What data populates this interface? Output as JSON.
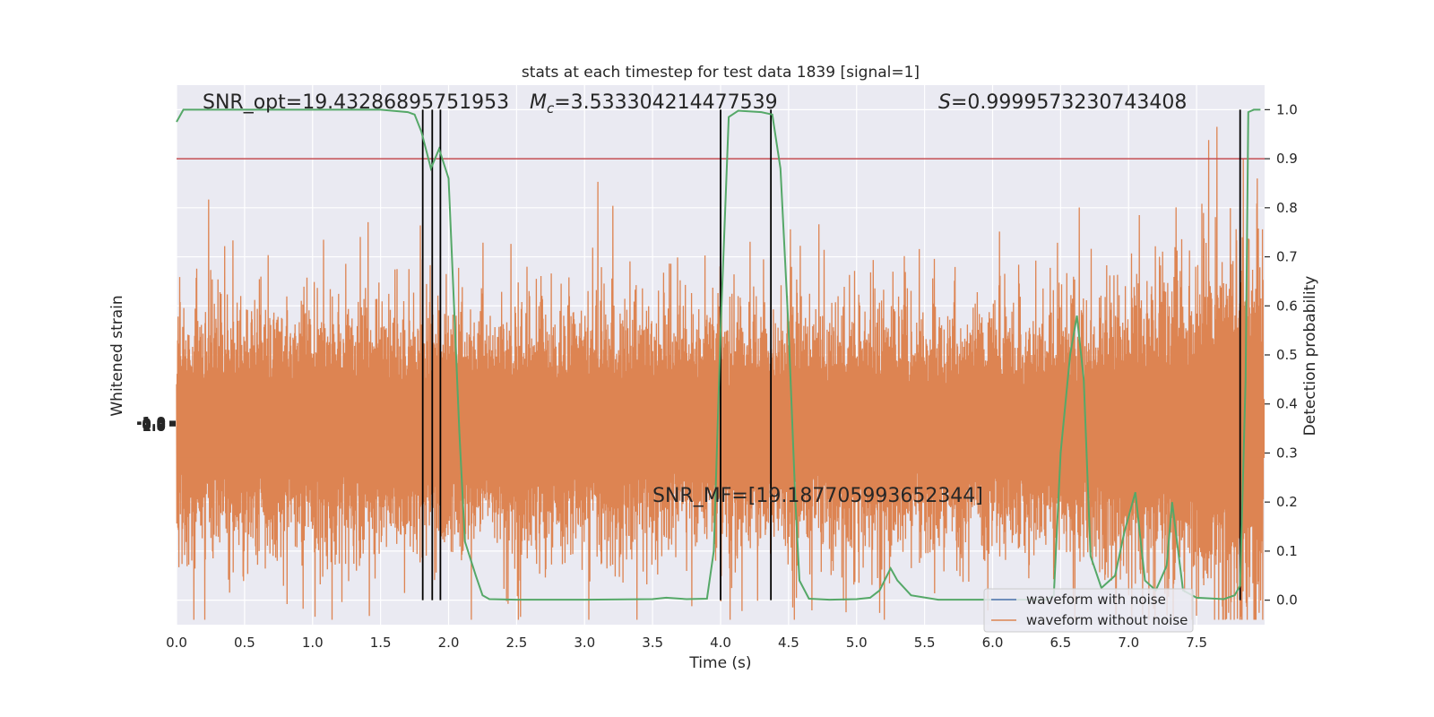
{
  "chart_data": {
    "type": "line",
    "title": "stats at each timestep for test data 1839 [signal=1]",
    "xlabel": "Time (s)",
    "ylabel_left": "Whitened strain",
    "ylabel_right": "Detection probability",
    "xlim": [
      0.0,
      8.0
    ],
    "ylim_right": [
      -0.05,
      1.05
    ],
    "x_ticks": [
      "0.0",
      "0.5",
      "1.0",
      "1.5",
      "2.0",
      "2.5",
      "3.0",
      "3.5",
      "4.0",
      "4.5",
      "5.0",
      "5.5",
      "6.0",
      "6.5",
      "7.0",
      "7.5"
    ],
    "y_right_ticks": [
      "0.0",
      "0.1",
      "0.2",
      "0.3",
      "0.4",
      "0.5",
      "0.6",
      "0.7",
      "0.8",
      "0.9",
      "1.0"
    ],
    "y_left_ticks": [
      "-1.0",
      "-0.5",
      "0.0",
      "0.5",
      "1.0"
    ],
    "grid": true,
    "annotations": {
      "snr_opt": "SNR_opt=19.43286895751953",
      "mc_symbol": "M",
      "mc_sub": "c",
      "mc_value": "=3.533304214477539",
      "s_symbol": "S",
      "s_value": "=0.9999573230743408",
      "snr_mf": "SNR_MF=[19.187705993652344]"
    },
    "threshold": 0.9,
    "vertical_lines": [
      1.81,
      1.88,
      1.94,
      4.0,
      4.37,
      7.82
    ],
    "legend": {
      "position": "lower-right",
      "entries": [
        "waveform with noise",
        "waveform without noise"
      ]
    },
    "series": [
      {
        "name": "Detection probability",
        "x": [
          0.0,
          0.05,
          0.1,
          0.5,
          1.0,
          1.5,
          1.7,
          1.75,
          1.8,
          1.87,
          1.93,
          2.0,
          2.04,
          2.08,
          2.12,
          2.2,
          2.25,
          2.3,
          2.5,
          3.0,
          3.5,
          3.6,
          3.75,
          3.9,
          3.95,
          4.0,
          4.06,
          4.13,
          4.3,
          4.38,
          4.44,
          4.5,
          4.55,
          4.58,
          4.65,
          4.8,
          5.0,
          5.1,
          5.17,
          5.25,
          5.3,
          5.4,
          5.6,
          6.0,
          6.4,
          6.45,
          6.5,
          6.57,
          6.62,
          6.67,
          6.72,
          6.8,
          6.9,
          6.97,
          7.05,
          7.12,
          7.2,
          7.28,
          7.32,
          7.4,
          7.5,
          7.7,
          7.78,
          7.82,
          7.86,
          7.88,
          7.92,
          7.97
        ],
        "values": [
          0.975,
          1.0,
          1.0,
          1.0,
          1.0,
          1.0,
          0.995,
          0.99,
          0.955,
          0.88,
          0.92,
          0.86,
          0.6,
          0.34,
          0.12,
          0.05,
          0.01,
          0.002,
          0.001,
          0.001,
          0.002,
          0.005,
          0.002,
          0.003,
          0.1,
          0.55,
          0.985,
          0.998,
          0.995,
          0.99,
          0.88,
          0.55,
          0.2,
          0.04,
          0.003,
          0.001,
          0.002,
          0.005,
          0.02,
          0.065,
          0.04,
          0.01,
          0.001,
          0.001,
          0.001,
          0.01,
          0.3,
          0.5,
          0.58,
          0.45,
          0.09,
          0.025,
          0.05,
          0.14,
          0.22,
          0.04,
          0.02,
          0.07,
          0.2,
          0.02,
          0.005,
          0.002,
          0.01,
          0.03,
          0.45,
          0.995,
          1.0,
          1.0
        ]
      },
      {
        "name": "waveform with noise",
        "seed": 1839,
        "amplitude": 0.28
      },
      {
        "name": "waveform without noise",
        "seed": 1839,
        "amplitude": 0.28
      }
    ]
  },
  "colors": {
    "background": "#eaeaf2",
    "grid": "#ffffff",
    "noise_wave": "#dd8452",
    "clean_wave": "#4c72b0",
    "probability": "#55a868",
    "threshold": "#c44e52",
    "vlines": "#000000"
  }
}
